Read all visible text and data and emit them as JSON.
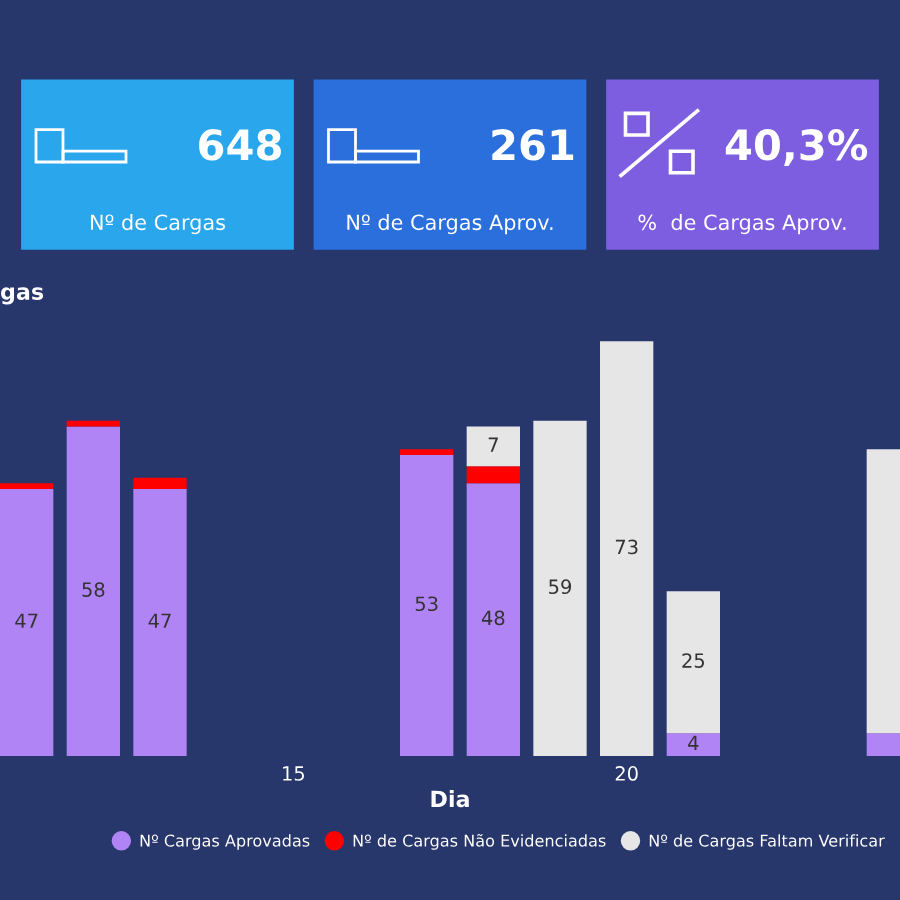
{
  "chart_data": [
    {
      "type": "other",
      "annotations": [
        "648",
        "Nº de Cargas",
        "261",
        "Nº de Cargas Aprov.",
        "40,3%",
        "%  de Cargas Aprov."
      ],
      "colors": [
        "#2aa6ec",
        "#2a6fdc",
        "#7d5ee0"
      ]
    },
    {
      "type": "bar",
      "stacked": true,
      "title": "gas",
      "xlabel": "Dia",
      "x": [
        11,
        12,
        13,
        17,
        18,
        19,
        20,
        21,
        24
      ],
      "xlim": [
        10.6,
        24.1
      ],
      "xticks": [
        15,
        20
      ],
      "grid": false,
      "legend": "bottom",
      "marker": "circle",
      "series": [
        {
          "name": "Nº Cargas Aprovadas",
          "color": "#b084f5",
          "values": [
            47,
            58,
            47,
            53,
            48,
            null,
            null,
            4,
            4
          ],
          "value_labels": [
            "47",
            "58",
            "47",
            "53",
            "48",
            null,
            null,
            "4",
            null
          ]
        },
        {
          "name": "Nº de Cargas Não Evidenciadas",
          "color": "#ff0000",
          "values": [
            1,
            1,
            2,
            1,
            3,
            null,
            null,
            null,
            null
          ],
          "value_labels": [
            null,
            null,
            null,
            null,
            null,
            null,
            null,
            null,
            null
          ]
        },
        {
          "name": "Nº de Cargas Faltam Verificar",
          "color": "#e6e6e6",
          "values": [
            null,
            null,
            null,
            null,
            7,
            59,
            73,
            25,
            50
          ],
          "value_labels": [
            null,
            null,
            null,
            null,
            "7",
            "59",
            "73",
            "25",
            null
          ]
        }
      ]
    }
  ]
}
